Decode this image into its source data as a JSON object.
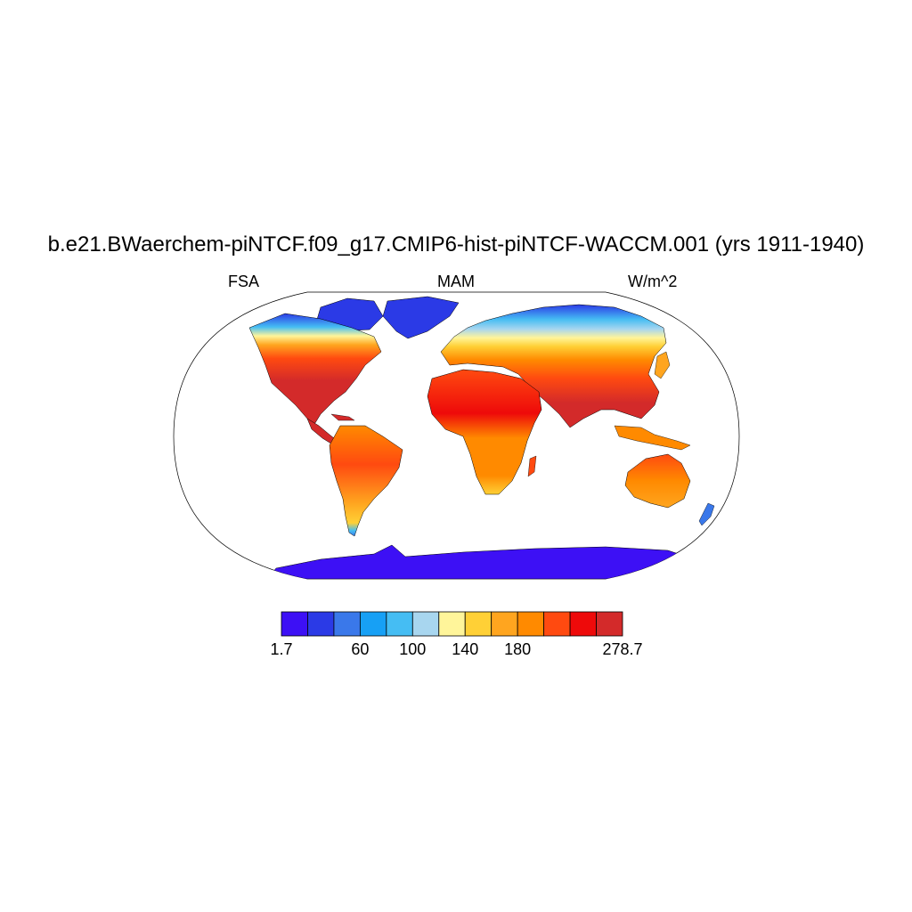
{
  "title": "b.e21.BWaerchem-piNTCF.f09_g17.CMIP6-hist-piNTCF-WACCM.001 (yrs 1911-1940)",
  "variable": "FSA",
  "season": "MAM",
  "units": "W/m^2",
  "colorbar": {
    "colors": [
      "#3d10f5",
      "#2b3ae6",
      "#3a78ea",
      "#17a0f5",
      "#45bdf3",
      "#a8d6ef",
      "#fff59a",
      "#ffd036",
      "#ffa51f",
      "#ff8a00",
      "#ff4a10",
      "#ee0a0a",
      "#d32a2a"
    ],
    "labels": [
      {
        "text": "1.7",
        "boundary": 0
      },
      {
        "text": "60",
        "boundary": 3
      },
      {
        "text": "100",
        "boundary": 5
      },
      {
        "text": "140",
        "boundary": 7
      },
      {
        "text": "180",
        "boundary": 9
      },
      {
        "text": "278.7",
        "boundary": 13
      }
    ]
  },
  "map_regions": [
    {
      "name": "north-america",
      "fill": "#ff4a10"
    },
    {
      "name": "south-america",
      "fill": "#ff8a00"
    },
    {
      "name": "africa",
      "fill": "#ff4a10"
    },
    {
      "name": "eurasia",
      "fill": "#ff4a10"
    },
    {
      "name": "australia",
      "fill": "#ff8a00"
    },
    {
      "name": "greenland",
      "fill": "#2b3ae6"
    },
    {
      "name": "antarctica",
      "fill": "#3d10f5"
    }
  ]
}
